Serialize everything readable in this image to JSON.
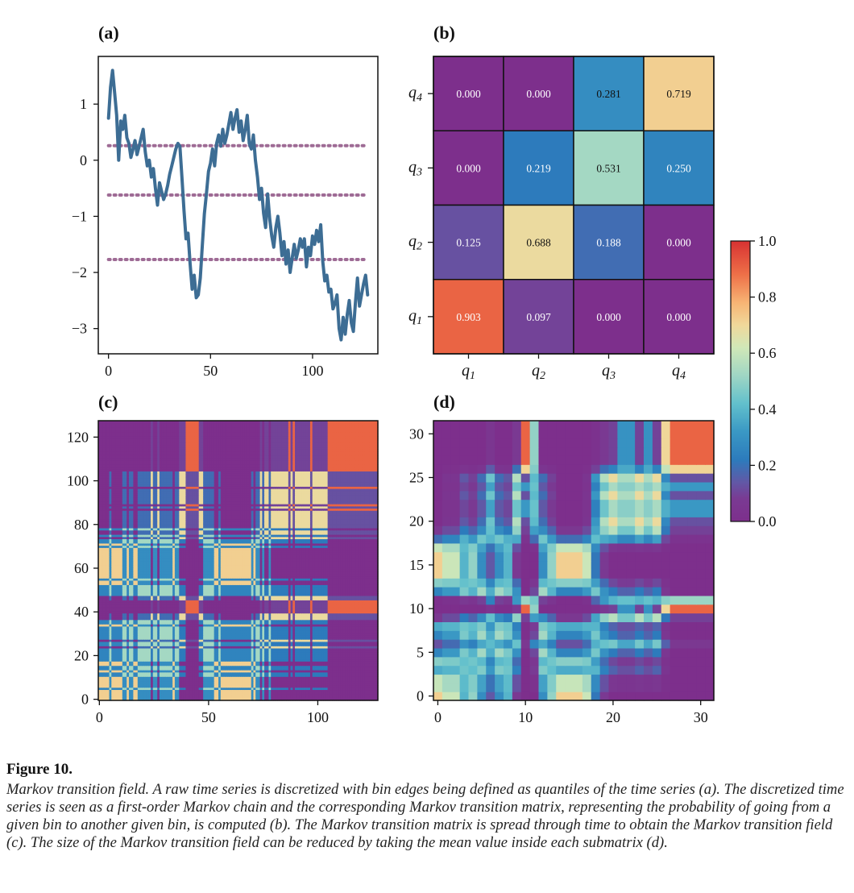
{
  "figure": {
    "heading": "Figure 10.",
    "caption": "Markov transition field. A raw time series is discretized with bin edges being defined as quantiles of the time series (a). The discretized time series is seen as a first-order Markov chain and the corresponding Markov transition matrix, representing the probability of going from a given bin to another given bin, is computed (b). The Markov transition matrix is spread through time to obtain the Markov transition field (c). The size of the Markov transition field can be reduced by taking the mean value inside each submatrix (d)."
  },
  "chart_data": [
    {
      "panel": "(a)",
      "type": "line",
      "title": "",
      "xlabel": "",
      "ylabel": "",
      "xlim": [
        -5,
        132
      ],
      "ylim": [
        -3.45,
        1.85
      ],
      "xticks": [
        0,
        50,
        100
      ],
      "yticks": [
        1,
        0,
        -1,
        -2,
        -3
      ],
      "ytick_labels": [
        "1",
        "0",
        "−1",
        "−2",
        "−3"
      ],
      "line_color": "#3d6d94",
      "threshold_color": "#9e6b95",
      "thresholds": [
        0.26,
        -0.62,
        -1.77
      ],
      "x": [
        0,
        1,
        2,
        3,
        4,
        5,
        6,
        7,
        8,
        9,
        10,
        11,
        12,
        13,
        14,
        15,
        16,
        17,
        18,
        19,
        20,
        21,
        22,
        23,
        24,
        25,
        26,
        27,
        28,
        29,
        30,
        31,
        32,
        33,
        34,
        35,
        36,
        37,
        38,
        39,
        40,
        41,
        42,
        43,
        44,
        45,
        46,
        47,
        48,
        49,
        50,
        51,
        52,
        53,
        54,
        55,
        56,
        57,
        58,
        59,
        60,
        61,
        62,
        63,
        64,
        65,
        66,
        67,
        68,
        69,
        70,
        71,
        72,
        73,
        74,
        75,
        76,
        77,
        78,
        79,
        80,
        81,
        82,
        83,
        84,
        85,
        86,
        87,
        88,
        89,
        90,
        91,
        92,
        93,
        94,
        95,
        96,
        97,
        98,
        99,
        100,
        101,
        102,
        103,
        104,
        105,
        106,
        107,
        108,
        109,
        110,
        111,
        112,
        113,
        114,
        115,
        116,
        117,
        118,
        119,
        120,
        121,
        122,
        123,
        124,
        125,
        126,
        127
      ],
      "y": [
        0.75,
        1.3,
        1.6,
        1.2,
        0.8,
        0.0,
        0.7,
        0.55,
        0.8,
        0.4,
        0.3,
        0.05,
        0.2,
        0.35,
        0.1,
        0.25,
        0.4,
        0.55,
        0.15,
        -0.1,
        0.0,
        -0.3,
        -0.15,
        -0.5,
        -0.8,
        -0.4,
        -0.55,
        -0.7,
        -0.6,
        -0.45,
        -0.25,
        -0.1,
        0.05,
        0.2,
        0.3,
        0.25,
        -0.3,
        -0.9,
        -1.4,
        -1.3,
        -1.85,
        -2.3,
        -2.05,
        -2.45,
        -2.4,
        -2.1,
        -1.5,
        -0.95,
        -0.6,
        -0.2,
        -0.05,
        0.2,
        -0.1,
        0.3,
        0.45,
        0.25,
        0.55,
        0.3,
        0.45,
        0.65,
        0.85,
        0.55,
        0.75,
        0.9,
        0.5,
        0.7,
        0.35,
        0.55,
        0.8,
        0.3,
        0.2,
        0.45,
        0.0,
        -0.3,
        -0.7,
        -0.5,
        -0.95,
        -1.2,
        -0.6,
        -1.05,
        -1.35,
        -1.55,
        -1.2,
        -1.0,
        -1.3,
        -1.7,
        -1.45,
        -1.85,
        -1.6,
        -2.0,
        -1.75,
        -1.5,
        -1.75,
        -1.6,
        -1.4,
        -1.55,
        -1.4,
        -1.9,
        -1.55,
        -1.7,
        -1.35,
        -1.5,
        -1.25,
        -1.45,
        -1.15,
        -1.8,
        -2.15,
        -2.05,
        -2.35,
        -2.3,
        -2.65,
        -2.55,
        -2.4,
        -3.0,
        -3.2,
        -2.8,
        -3.1,
        -2.75,
        -2.5,
        -2.9,
        -3.05,
        -2.55,
        -2.1,
        -2.6,
        -2.4,
        -2.2,
        -2.05,
        -2.4
      ],
      "x_data_end": 127
    },
    {
      "panel": "(b)",
      "type": "heatmap",
      "title": "",
      "row_labels": [
        "q4",
        "q3",
        "q2",
        "q1"
      ],
      "col_labels": [
        "q1",
        "q2",
        "q3",
        "q4"
      ],
      "values": [
        [
          0.0,
          0.0,
          0.281,
          0.719
        ],
        [
          0.0,
          0.219,
          0.531,
          0.25
        ],
        [
          0.125,
          0.688,
          0.188,
          0.0
        ],
        [
          0.903,
          0.097,
          0.0,
          0.0
        ]
      ],
      "value_labels": [
        [
          "0.000",
          "0.000",
          "0.281",
          "0.719"
        ],
        [
          "0.000",
          "0.219",
          "0.531",
          "0.250"
        ],
        [
          "0.125",
          "0.688",
          "0.188",
          "0.000"
        ],
        [
          "0.903",
          "0.097",
          "0.000",
          "0.000"
        ]
      ],
      "colormap": "Spectral_r",
      "vmin": 0.0,
      "vmax": 1.0
    },
    {
      "panel": "(c)",
      "type": "heatmap",
      "title": "",
      "size": 128,
      "xticks": [
        0,
        50,
        100
      ],
      "yticks": [
        0,
        20,
        40,
        60,
        80,
        100,
        120
      ],
      "origin": "lower",
      "source": "markov transition field of series (a) using matrix (b)"
    },
    {
      "panel": "(d)",
      "type": "heatmap",
      "title": "",
      "size": 32,
      "xticks": [
        0,
        10,
        20,
        30
      ],
      "yticks": [
        0,
        5,
        10,
        15,
        20,
        25,
        30
      ],
      "origin": "lower",
      "source": "4x4 mean pooling of field (c)"
    }
  ],
  "colorbar": {
    "ticks": [
      "1.0",
      "0.8",
      "0.6",
      "0.4",
      "0.2",
      "0.0"
    ],
    "tick_values": [
      1.0,
      0.8,
      0.6,
      0.4,
      0.2,
      0.0
    ],
    "colormap": "Spectral_r"
  },
  "colormap_stops": [
    [
      0.0,
      "#7d2f8c"
    ],
    [
      0.08,
      "#7a3a93"
    ],
    [
      0.14,
      "#6158a6"
    ],
    [
      0.22,
      "#2c7bbc"
    ],
    [
      0.32,
      "#3a98c4"
    ],
    [
      0.42,
      "#62c0cc"
    ],
    [
      0.52,
      "#9fd6c4"
    ],
    [
      0.62,
      "#d0e8b8"
    ],
    [
      0.7,
      "#f0d89a"
    ],
    [
      0.78,
      "#f7b474"
    ],
    [
      0.88,
      "#ee7048"
    ],
    [
      1.0,
      "#d83232"
    ]
  ]
}
